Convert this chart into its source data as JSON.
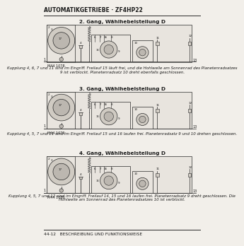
{
  "title": "AUTOMATIKGETRIEBE · ZF4HP22",
  "footer": "44-12   BESCHREIBUNG UND FUNKTIONSWEISE",
  "bg_color": "#f2efea",
  "text_color": "#1a1a1a",
  "line_color": "#2a2a2a",
  "sections": [
    {
      "heading": "2. Gang, Wählhebelstellung D",
      "image_label": "M44 1078",
      "right_label": "13",
      "desc1": "Kupplung 4, 6, 7 und 11 sind im Eingriff. Freilauf 15 läuft frei, und die Hohlwelle am Sonnenrad des Planetenradsatzes",
      "desc2": "9 ist verblockt. Planetenradsatz 10 dreht ebenfalls geschlossen."
    },
    {
      "heading": "3. Gang, Wählhebelstellung D",
      "image_label": "M44 1079",
      "right_label": "13",
      "desc1": "Kupplung 4, 5, 7 und 11 sind im Eingriff. Freilauf 15 und 16 laufen frei. Planetenradsatz 9 und 10 drehen geschlossen.",
      "desc2": ""
    },
    {
      "heading": "4. Gang, Wählhebelstellung D",
      "image_label": "M44 1080",
      "right_label": "13",
      "desc1": "Kupplung 4, 5, 7 und 12 sind im Eingriff. Freilauf 14, 15 und 16 laufen frei. Planetenradsatz 9 dreht geschlossen. Die",
      "desc2": "Hohlwelle am Sonnenrad des Planetenradsatzes 10 ist verblockt."
    }
  ],
  "diagram_facecolor": "#e8e4de",
  "circle_color": "#d0cbc3",
  "circle2_color": "#bcb7b0"
}
